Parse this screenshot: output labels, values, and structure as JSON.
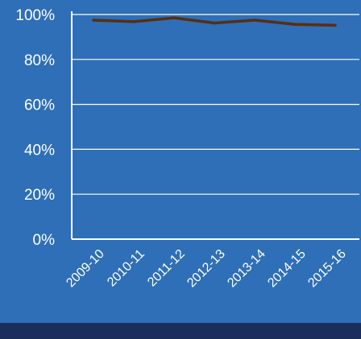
{
  "chart_data": {
    "type": "line",
    "categories": [
      "2009-10",
      "2010-11",
      "2011-12",
      "2012-13",
      "2013-14",
      "2014-15",
      "2015-16"
    ],
    "series": [
      {
        "values": [
          0.975,
          0.968,
          0.985,
          0.962,
          0.975,
          0.956,
          0.952
        ]
      }
    ],
    "yticks": [
      "0%",
      "20%",
      "40%",
      "60%",
      "80%",
      "100%"
    ],
    "ylim": [
      0,
      1
    ],
    "grid": true,
    "legend": "none",
    "colors": {
      "background": "#2e6fb7",
      "grid": "#ffffff",
      "axis": "#ffffff",
      "text": "#ffffff",
      "line": "#5a2e0e",
      "bottom_band": "#1b2d5a"
    }
  }
}
